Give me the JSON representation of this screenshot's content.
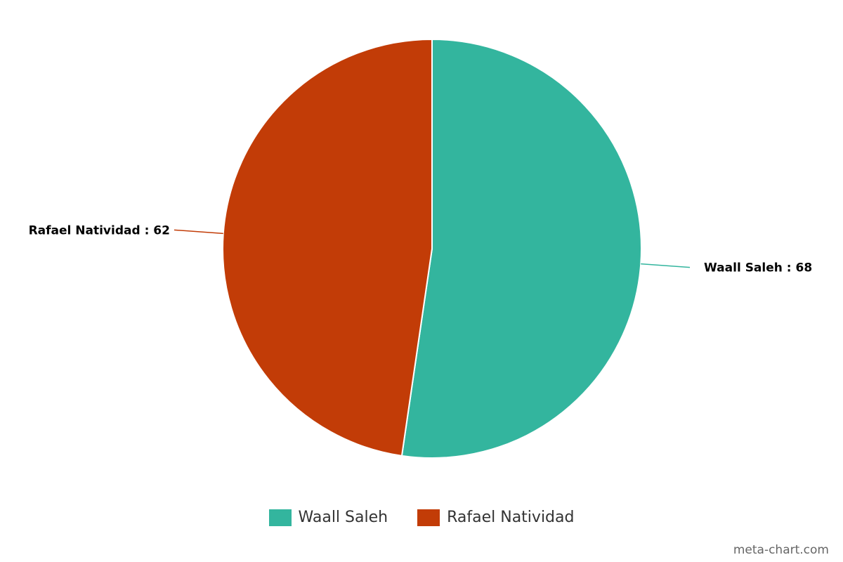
{
  "chart_data": {
    "type": "pie",
    "slices": [
      {
        "name": "Waall Saleh",
        "value": 68,
        "label": "Waall Saleh : 68",
        "color": "#33b59e"
      },
      {
        "name": "Rafael Natividad",
        "value": 62,
        "label": "Rafael Natividad : 62",
        "color": "#c23c07"
      }
    ],
    "legend": {
      "position": "bottom",
      "items": [
        "Waall Saleh",
        "Rafael Natividad"
      ]
    }
  },
  "watermark": "meta-chart.com"
}
